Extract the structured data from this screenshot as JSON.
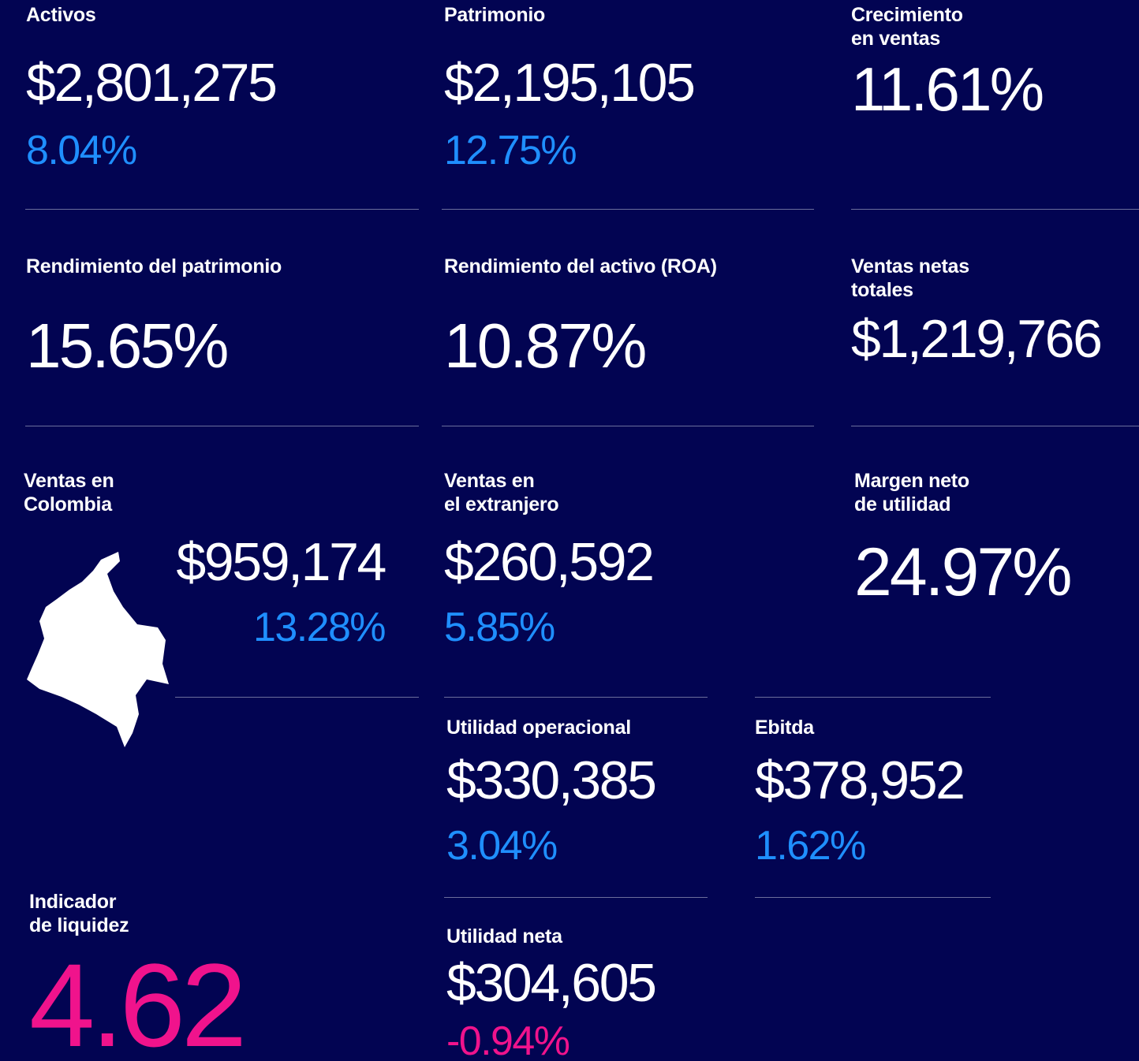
{
  "metrics": [
    {
      "label": [
        "Activos"
      ],
      "value": "$2,801,275",
      "change": "8.04%"
    },
    {
      "label": [
        "Patrimonio"
      ],
      "value": "$2,195,105",
      "change": "12.75%"
    },
    {
      "label": [
        "Crecimiento",
        "en ventas"
      ],
      "value": "11.61%"
    },
    {
      "label": [
        "Rendimiento del patrimonio"
      ],
      "value": "15.65%"
    },
    {
      "label": [
        "Rendimiento del activo (ROA)"
      ],
      "value": "10.87%"
    },
    {
      "label": [
        "Ventas netas",
        "totales"
      ],
      "value": "$1,219,766"
    },
    {
      "label": [
        "Ventas en",
        "Colombia"
      ],
      "value": "$959,174",
      "change": "13.28%"
    },
    {
      "label": [
        "Ventas en",
        "el extranjero"
      ],
      "value": "$260,592",
      "change": "5.85%"
    },
    {
      "label": [
        "Margen neto",
        "de utilidad"
      ],
      "value": "24.97%"
    },
    {
      "label": [
        "Utilidad operacional"
      ],
      "value": "$330,385",
      "change": "3.04%"
    },
    {
      "label": [
        "Ebitda"
      ],
      "value": "$378,952",
      "change": "1.62%"
    },
    {
      "label": [
        "Indicador",
        "de liquidez"
      ],
      "value": "4.62"
    },
    {
      "label": [
        "Utilidad neta"
      ],
      "value": "$304,605",
      "change": "-0.94%"
    }
  ]
}
